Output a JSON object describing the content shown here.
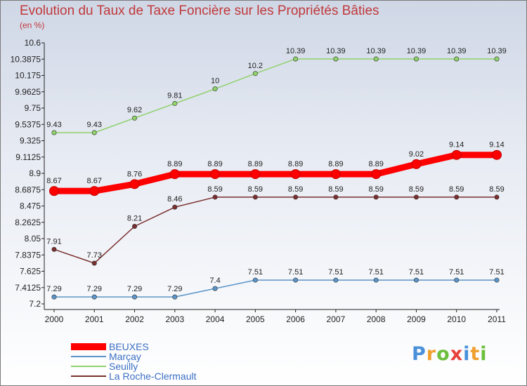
{
  "title": "Evolution du Taux de Taxe Foncière sur les Propriétés Bâties",
  "unit": "(en %)",
  "logo": {
    "letters": [
      {
        "ch": "P",
        "color": "#4a90d9"
      },
      {
        "ch": "r",
        "color": "#f0a030"
      },
      {
        "ch": "o",
        "color": "#6cbf3c"
      },
      {
        "ch": "x",
        "color": "#e8403a"
      },
      {
        "ch": "i",
        "color": "#4a90d9"
      },
      {
        "ch": "t",
        "color": "#f0a030"
      },
      {
        "ch": "i",
        "color": "#6cbf3c"
      }
    ]
  },
  "chart_data": {
    "type": "line",
    "title": "Evolution du Taux de Taxe Foncière sur les Propriétés Bâties",
    "ylabel": "(en %)",
    "x": [
      "2000",
      "2001",
      "2002",
      "2003",
      "2004",
      "2005",
      "2006",
      "2007",
      "2008",
      "2009",
      "2010",
      "2011"
    ],
    "ylim": [
      7.2,
      10.6
    ],
    "yticks": [
      "7.2",
      "7.4125",
      "7.625",
      "7.8375",
      "8.05",
      "8.2625",
      "8.475",
      "8.6875",
      "8.9",
      "9.1125",
      "9.325",
      "9.5375",
      "9.75",
      "9.9625",
      "10.175",
      "10.3875",
      "10.6"
    ],
    "grid": false,
    "legend_position": "bottom-left",
    "series": [
      {
        "name": "BEUXES",
        "color": "#ff0000",
        "values": [
          8.67,
          8.67,
          8.76,
          8.89,
          8.89,
          8.89,
          8.89,
          8.89,
          8.89,
          9.02,
          9.14,
          9.14
        ],
        "labels": [
          "8.67",
          "8.67",
          "8.76",
          "8.89",
          "8.89",
          "8.89",
          "8.89",
          "8.89",
          "8.89",
          "9.02",
          "9.14",
          "9.14"
        ]
      },
      {
        "name": "Marçay",
        "color": "#5b95c8",
        "values": [
          7.29,
          7.29,
          7.29,
          7.29,
          7.4,
          7.51,
          7.51,
          7.51,
          7.51,
          7.51,
          7.51,
          7.51
        ],
        "labels": [
          "7.29",
          "7.29",
          "7.29",
          "7.29",
          "7.4",
          "7.51",
          "7.51",
          "7.51",
          "7.51",
          "7.51",
          "7.51",
          "7.51"
        ]
      },
      {
        "name": "Seuilly",
        "color": "#8fd16a",
        "values": [
          9.43,
          9.43,
          9.62,
          9.81,
          10,
          10.2,
          10.39,
          10.39,
          10.39,
          10.39,
          10.39,
          10.39
        ],
        "labels": [
          "9.43",
          "9.43",
          "9.62",
          "9.81",
          "10",
          "10.2",
          "10.39",
          "10.39",
          "10.39",
          "10.39",
          "10.39",
          "10.39"
        ]
      },
      {
        "name": "La Roche-Clermault",
        "color": "#7a2e2e",
        "values": [
          7.91,
          7.73,
          8.21,
          8.46,
          8.59,
          8.59,
          8.59,
          8.59,
          8.59,
          8.59,
          8.59,
          8.59
        ],
        "labels": [
          "7.91",
          "7.73",
          "8.21",
          "8.46",
          "8.59",
          "8.59",
          "8.59",
          "8.59",
          "8.59",
          "8.59",
          "8.59",
          "8.59"
        ]
      }
    ]
  }
}
